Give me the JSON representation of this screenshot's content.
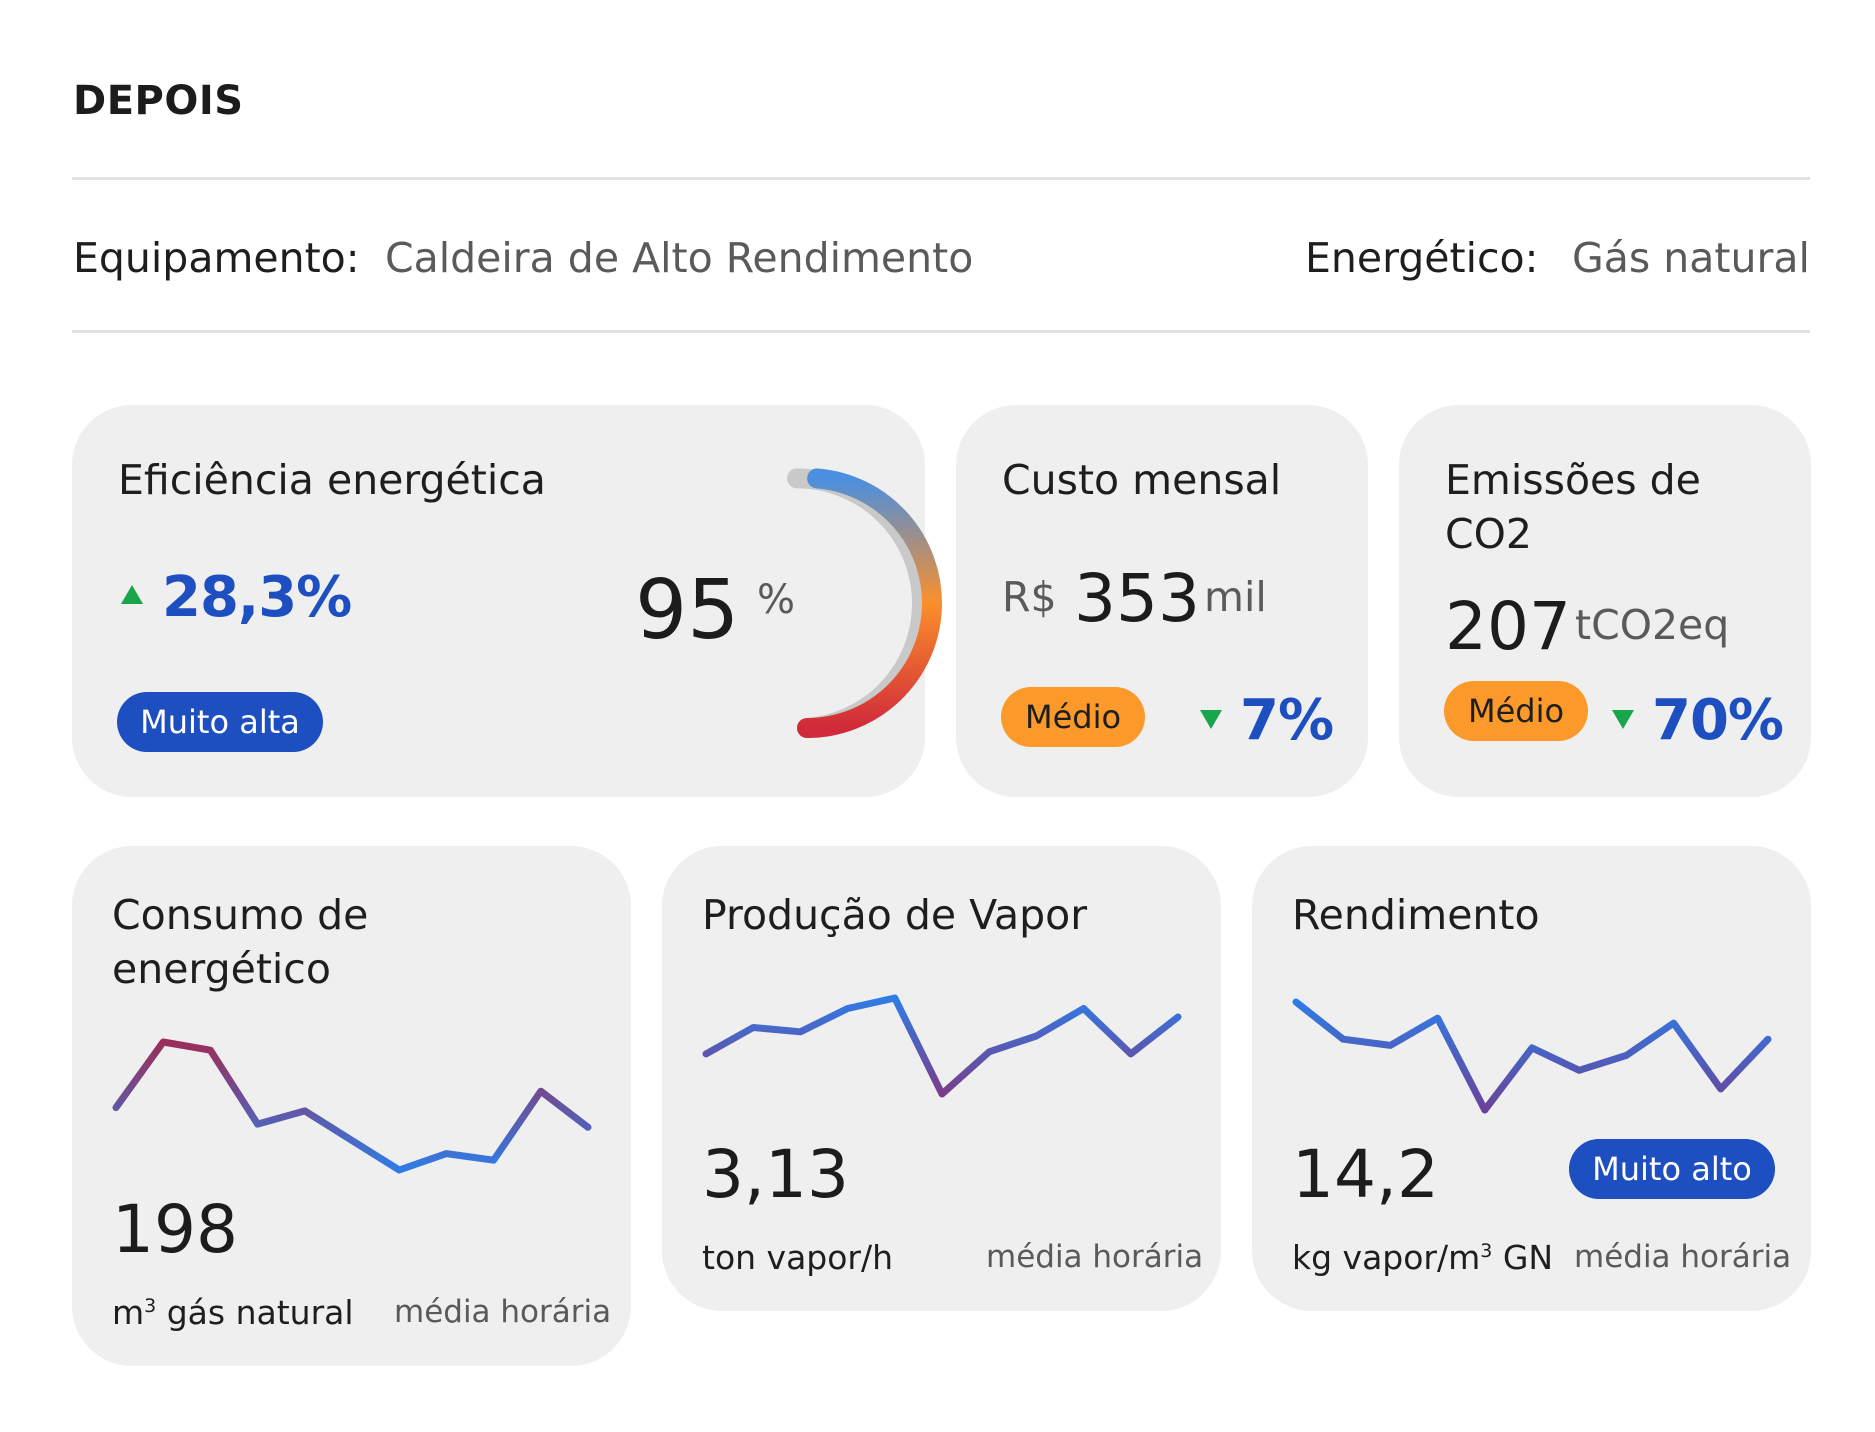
{
  "header": {
    "title": "DEPOIS",
    "equipment_label": "Equipamento:",
    "equipment_value": "Caldeira de Alto Rendimento",
    "energy_label": "Energético:",
    "energy_value": "Gás natural"
  },
  "efficiency": {
    "title": "Eficiência energética",
    "change": "28,3%",
    "change_direction": "up",
    "badge": "Muito alta",
    "value": "95",
    "value_unit": "%",
    "gauge_fraction": 0.95,
    "gauge_colors": [
      "#4a8fe0",
      "#fb8f2b",
      "#d02a3a"
    ],
    "gauge_track_color": "#c9c9c9"
  },
  "cost": {
    "title": "Custo mensal",
    "currency": "R$",
    "value": "353",
    "unit": "mil",
    "badge": "Médio",
    "change": "7%",
    "change_direction": "down"
  },
  "emissions": {
    "title_line1": "Emissões de",
    "title_line2": "CO2",
    "value": "207",
    "unit": "tCO2eq",
    "badge": "Médio",
    "change": "70%",
    "change_direction": "down"
  },
  "consumption": {
    "title_line1": "Consumo de",
    "title_line2": "energético",
    "value": "198",
    "unit_prefix": "m",
    "unit_sup": "3",
    "unit_suffix": " gás natural",
    "caption": "média horária",
    "trend": [
      0.3,
      0.7,
      0.65,
      0.2,
      0.28,
      0.1,
      -0.08,
      0.02,
      -0.02,
      0.4,
      0.18
    ],
    "trend_colors": [
      "#9b2d5a",
      "#2f7ce6"
    ]
  },
  "steam": {
    "title": "Produção de Vapor",
    "value": "3,13",
    "unit": "ton vapor/h",
    "caption": "média horária",
    "trend": [
      0.35,
      0.6,
      0.56,
      0.78,
      0.88,
      -0.03,
      0.37,
      0.52,
      0.78,
      0.35,
      0.7
    ],
    "trend_colors": [
      "#2f7ce6",
      "#7a3d8a"
    ]
  },
  "yield": {
    "title": "Rendimento",
    "value": "14,2",
    "badge": "Muito alto",
    "unit_prefix": "kg vapor/m",
    "unit_sup": "3",
    "unit_suffix": " GN",
    "caption": "média horária",
    "trend": [
      0.95,
      0.65,
      0.6,
      0.82,
      0.08,
      0.58,
      0.4,
      0.52,
      0.78,
      0.25,
      0.65
    ],
    "trend_colors": [
      "#2f7ce6",
      "#6a4398"
    ]
  }
}
